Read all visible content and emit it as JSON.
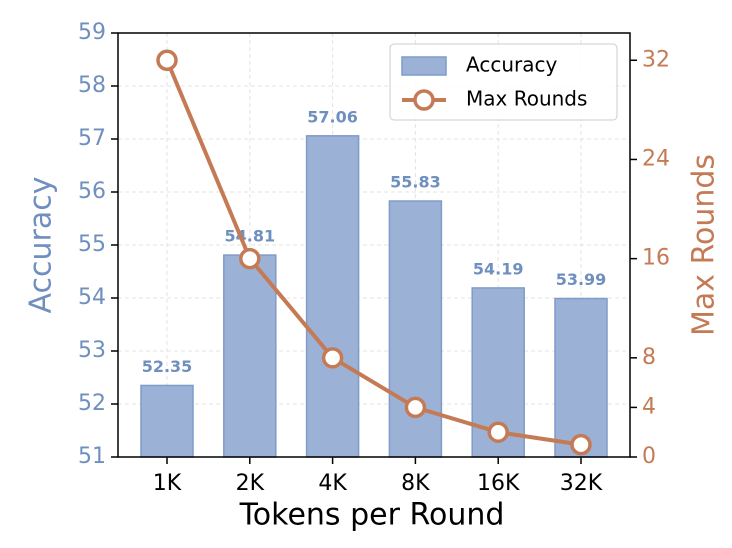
{
  "chart_data": {
    "type": "bar",
    "x_label": "Tokens per Round",
    "y_label": "Accuracy",
    "y2_label": "Max Rounds",
    "categories": [
      "1K",
      "2K",
      "4K",
      "8K",
      "16K",
      "32K"
    ],
    "series": [
      {
        "name": "Accuracy",
        "type": "bar",
        "color": "#9bb2d6",
        "values": [
          52.35,
          54.81,
          57.06,
          55.83,
          54.19,
          53.99
        ]
      },
      {
        "name": "Max Rounds",
        "type": "line",
        "color": "#c47b55",
        "axis": "y2",
        "values": [
          32,
          16,
          8,
          4,
          2,
          1
        ]
      }
    ],
    "ylim": [
      51,
      59
    ],
    "yticks": [
      51,
      52,
      53,
      54,
      55,
      56,
      57,
      58,
      59
    ],
    "y2lim": [
      0,
      34.2
    ],
    "y2ticks": [
      0,
      4,
      8,
      16,
      24,
      32
    ],
    "grid": true,
    "legend": "upper right"
  }
}
